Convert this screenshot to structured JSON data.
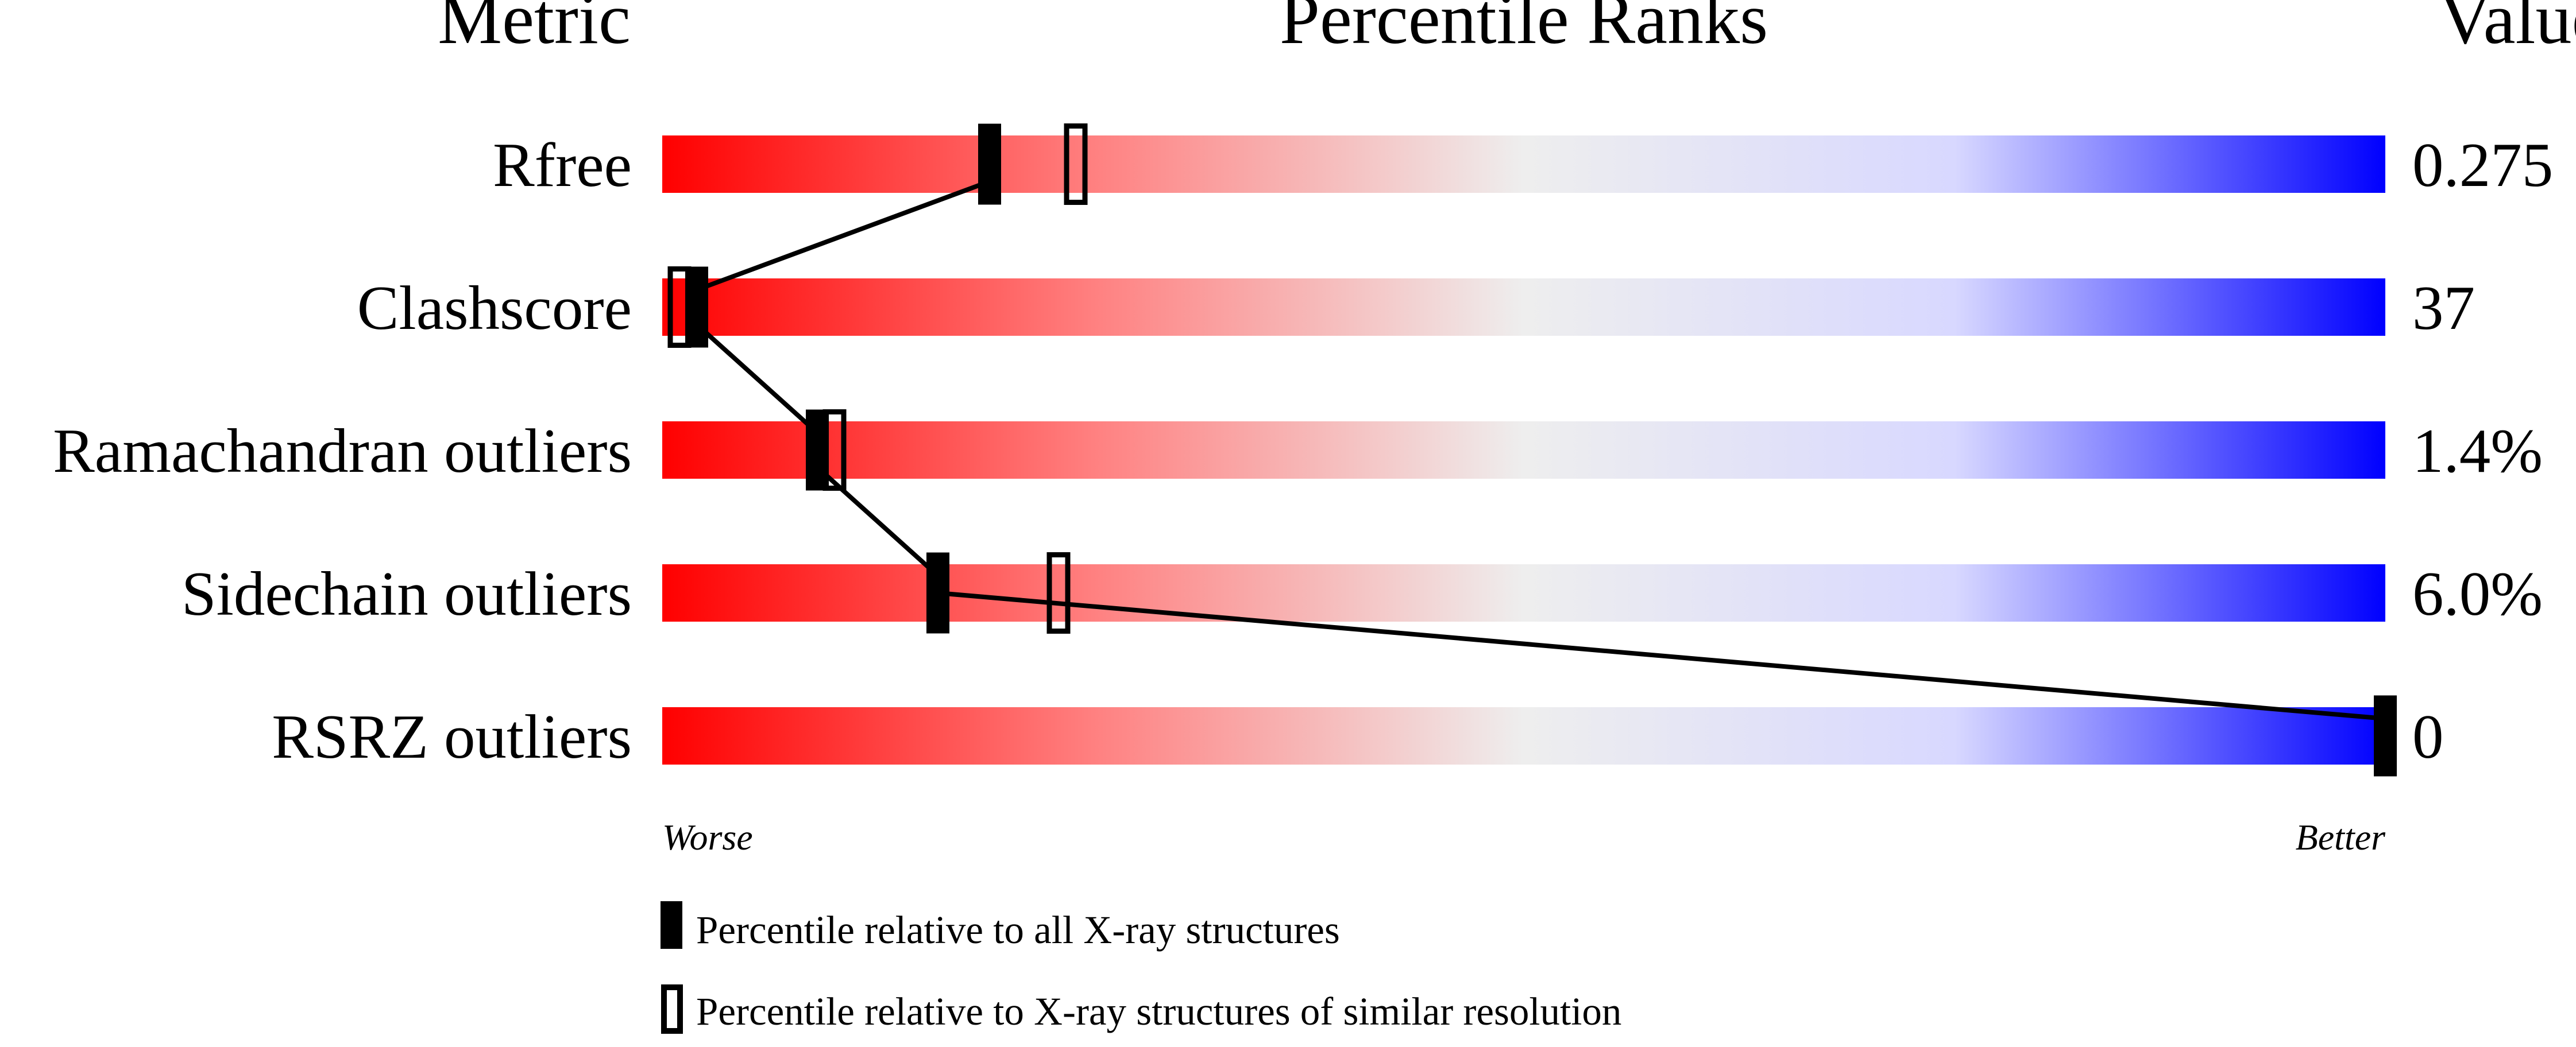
{
  "chart_data": {
    "type": "percentile-bar",
    "headers": {
      "metric": "Metric",
      "ranks": "Percentile Ranks",
      "value": "Value"
    },
    "xlim": [
      0,
      100
    ],
    "axis_labels": {
      "left": "Worse",
      "right": "Better"
    },
    "gradient_colors": [
      "#ff0000",
      "#eeeeee",
      "#0000ff"
    ],
    "rows": [
      {
        "metric": "Rfree",
        "value": "0.275",
        "percentile_all": 19,
        "percentile_similar": 24
      },
      {
        "metric": "Clashscore",
        "value": "37",
        "percentile_all": 2,
        "percentile_similar": 1
      },
      {
        "metric": "Ramachandran outliers",
        "value": "1.4%",
        "percentile_all": 9,
        "percentile_similar": 10
      },
      {
        "metric": "Sidechain outliers",
        "value": "6.0%",
        "percentile_all": 16,
        "percentile_similar": 23
      },
      {
        "metric": "RSRZ outliers",
        "value": "0",
        "percentile_all": 100,
        "percentile_similar": null
      }
    ],
    "legend": [
      {
        "marker": "filled",
        "label": "Percentile relative to all X-ray structures"
      },
      {
        "marker": "open",
        "label": "Percentile relative to X-ray structures of similar resolution"
      }
    ]
  }
}
